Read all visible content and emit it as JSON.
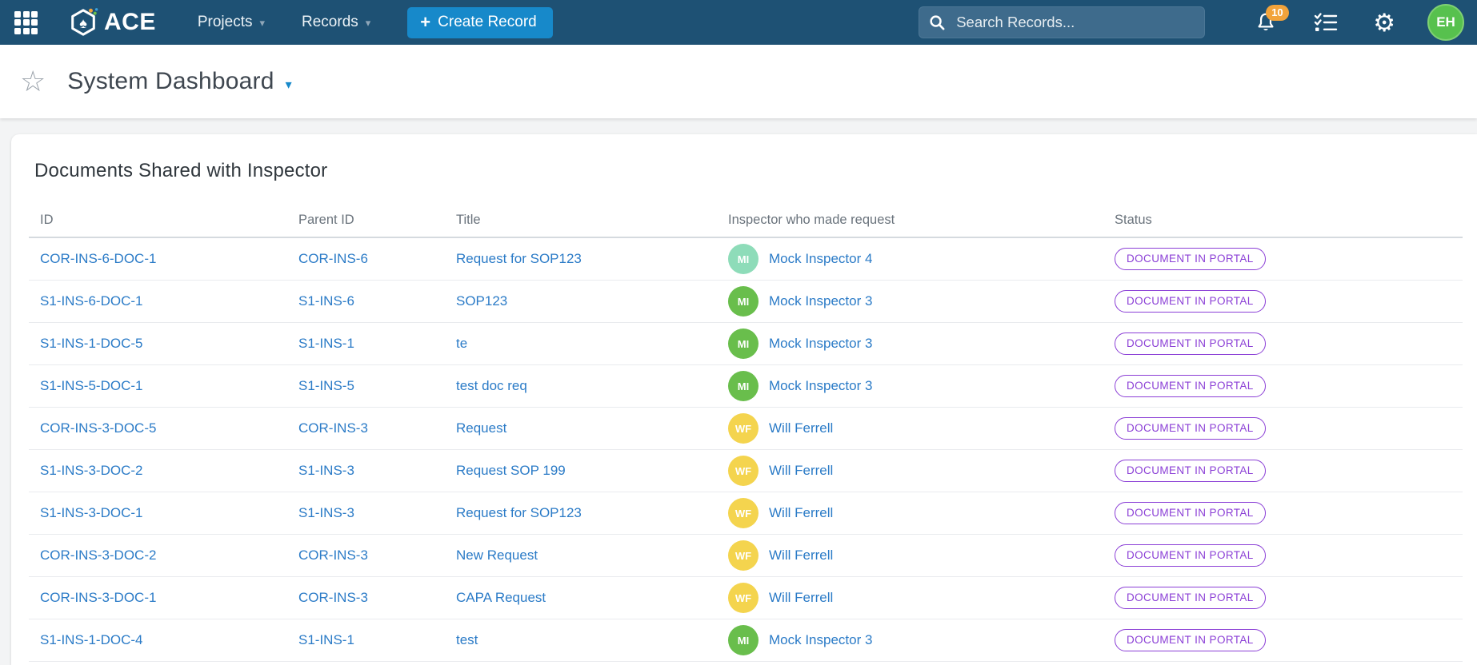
{
  "nav": {
    "brand": "ACE",
    "items": [
      {
        "label": "Projects"
      },
      {
        "label": "Records"
      }
    ],
    "create_button_label": "Create Record",
    "search_placeholder": "Search Records...",
    "notification_count": "10",
    "user_initials": "EH"
  },
  "page": {
    "title": "System Dashboard"
  },
  "panel": {
    "title": "Documents Shared with Inspector",
    "columns": [
      "ID",
      "Parent ID",
      "Title",
      "Inspector who made request",
      "Status"
    ],
    "rows": [
      {
        "id": "COR-INS-6-DOC-1",
        "parent_id": "COR-INS-6",
        "title": "Request for SOP123",
        "inspector": "Mock Inspector 4",
        "initials": "MI",
        "avatar_color": "#8edcb9",
        "status": "DOCUMENT IN PORTAL"
      },
      {
        "id": "S1-INS-6-DOC-1",
        "parent_id": "S1-INS-6",
        "title": "SOP123",
        "inspector": "Mock Inspector 3",
        "initials": "MI",
        "avatar_color": "#69be4c",
        "status": "DOCUMENT IN PORTAL"
      },
      {
        "id": "S1-INS-1-DOC-5",
        "parent_id": "S1-INS-1",
        "title": "te",
        "inspector": "Mock Inspector 3",
        "initials": "MI",
        "avatar_color": "#69be4c",
        "status": "DOCUMENT IN PORTAL"
      },
      {
        "id": "S1-INS-5-DOC-1",
        "parent_id": "S1-INS-5",
        "title": "test doc req",
        "inspector": "Mock Inspector 3",
        "initials": "MI",
        "avatar_color": "#69be4c",
        "status": "DOCUMENT IN PORTAL"
      },
      {
        "id": "COR-INS-3-DOC-5",
        "parent_id": "COR-INS-3",
        "title": "Request",
        "inspector": "Will Ferrell",
        "initials": "WF",
        "avatar_color": "#f4d44e",
        "status": "DOCUMENT IN PORTAL"
      },
      {
        "id": "S1-INS-3-DOC-2",
        "parent_id": "S1-INS-3",
        "title": "Request SOP 199",
        "inspector": "Will Ferrell",
        "initials": "WF",
        "avatar_color": "#f4d44e",
        "status": "DOCUMENT IN PORTAL"
      },
      {
        "id": "S1-INS-3-DOC-1",
        "parent_id": "S1-INS-3",
        "title": "Request for SOP123",
        "inspector": "Will Ferrell",
        "initials": "WF",
        "avatar_color": "#f4d44e",
        "status": "DOCUMENT IN PORTAL"
      },
      {
        "id": "COR-INS-3-DOC-2",
        "parent_id": "COR-INS-3",
        "title": "New Request",
        "inspector": "Will Ferrell",
        "initials": "WF",
        "avatar_color": "#f4d44e",
        "status": "DOCUMENT IN PORTAL"
      },
      {
        "id": "COR-INS-3-DOC-1",
        "parent_id": "COR-INS-3",
        "title": "CAPA Request",
        "inspector": "Will Ferrell",
        "initials": "WF",
        "avatar_color": "#f4d44e",
        "status": "DOCUMENT IN PORTAL"
      },
      {
        "id": "S1-INS-1-DOC-4",
        "parent_id": "S1-INS-1",
        "title": "test",
        "inspector": "Mock Inspector 3",
        "initials": "MI",
        "avatar_color": "#69be4c",
        "status": "DOCUMENT IN PORTAL"
      }
    ]
  },
  "icons": {
    "spade": "♠",
    "gear": "⚙",
    "star": "☆",
    "caret": "▾",
    "plus": "+"
  },
  "colors": {
    "nav_bg": "#1e5174",
    "nav_text": "#eaf1f6",
    "create_btn": "#1789ca",
    "search_bg": "#3e6b8c",
    "badge_orange": "#f2a33b",
    "avatar_user": "#57c14e",
    "link": "#2b7bc7",
    "status_purple": "#8b3fd6",
    "title_text": "#3f4750",
    "header_text": "#6a737c",
    "avatar_mint": "#8edcb9",
    "avatar_green": "#69be4c",
    "avatar_yellow": "#f4d44e"
  }
}
